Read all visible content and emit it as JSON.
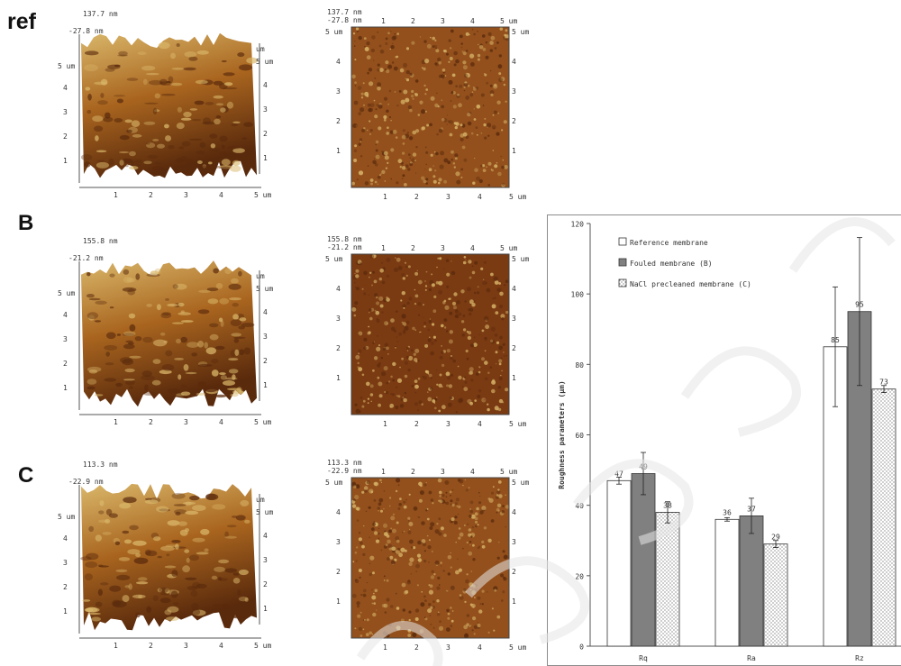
{
  "labels": {
    "ref": "ref",
    "b": "B",
    "c": "C"
  },
  "afm": [
    {
      "row": "ref",
      "three_d": {
        "max": "137.7 nm",
        "min": "-27.8 nm",
        "um5": "5 um",
        "ticks_left": [
          "4",
          "3",
          "2",
          "1"
        ],
        "ticks_right": [
          "4",
          "3",
          "2",
          "1"
        ],
        "ticks_bottom": [
          "1",
          "2",
          "3",
          "4",
          "5 um"
        ],
        "right_top": "um",
        "right_5": "5 um"
      },
      "flat": {
        "max": "137.7 nm",
        "min": "-27.8 nm",
        "top": [
          "1",
          "2",
          "3",
          "4",
          "5 um"
        ],
        "left": [
          "5 um",
          "4",
          "3",
          "2",
          "1"
        ],
        "right": [
          "5 um",
          "4",
          "3",
          "2",
          "1"
        ],
        "bottom": [
          "1",
          "2",
          "3",
          "4",
          "5 um"
        ]
      }
    },
    {
      "row": "B",
      "three_d": {
        "max": "155.8 nm",
        "min": "-21.2 nm",
        "um5": "5 um",
        "ticks_left": [
          "4",
          "3",
          "2",
          "1"
        ],
        "ticks_right": [
          "4",
          "3",
          "2",
          "1"
        ],
        "ticks_bottom": [
          "1",
          "2",
          "3",
          "4",
          "5 um"
        ],
        "right_top": "um",
        "right_5": "5 um"
      },
      "flat": {
        "max": "155.8 nm",
        "min": "-21.2 nm",
        "top": [
          "1",
          "2",
          "3",
          "4",
          "5 um"
        ],
        "left": [
          "5 um",
          "4",
          "3",
          "2",
          "1"
        ],
        "right": [
          "5 um",
          "4",
          "3",
          "2",
          "1"
        ],
        "bottom": [
          "1",
          "2",
          "3",
          "4",
          "5 um"
        ]
      }
    },
    {
      "row": "C",
      "three_d": {
        "max": "113.3 nm",
        "min": "-22.9 nm",
        "um5": "5 um",
        "ticks_left": [
          "4",
          "3",
          "2",
          "1"
        ],
        "ticks_right": [
          "4",
          "3",
          "2",
          "1"
        ],
        "ticks_bottom": [
          "1",
          "2",
          "3",
          "4",
          "5 um"
        ],
        "right_top": "um",
        "right_5": "5 um"
      },
      "flat": {
        "max": "113.3 nm",
        "min": "-22.9 nm",
        "top": [
          "1",
          "2",
          "3",
          "4",
          "5 um"
        ],
        "left": [
          "5 um",
          "4",
          "3",
          "2",
          "1"
        ],
        "right": [
          "5 um",
          "4",
          "3",
          "2",
          "1"
        ],
        "bottom": [
          "1",
          "2",
          "3",
          "4",
          "5 um"
        ]
      }
    }
  ],
  "colors": {
    "afm_light": "#d9b76a",
    "afm_dark": "#5a2a0c",
    "afm_mid": "#a9651f",
    "bar_ref": "#ffffff",
    "bar_fouled": "#808080",
    "bar_nacl": "#ffffff"
  },
  "chart_data": {
    "type": "bar",
    "categories": [
      "Rq",
      "Ra",
      "Rz"
    ],
    "ylabel": "Roughness parameters (µm)",
    "ylim": [
      0,
      120
    ],
    "yticks": [
      "0",
      "20",
      "40",
      "60",
      "80",
      "100",
      "120"
    ],
    "grid": false,
    "legend_position": "top-left",
    "series": [
      {
        "name": "Reference membrane",
        "values": [
          47,
          36,
          85
        ],
        "labels": [
          "47",
          "36",
          "85"
        ],
        "err": [
          1,
          0.5,
          17
        ]
      },
      {
        "name": "Fouled membrane (B)",
        "values": [
          49,
          37,
          95
        ],
        "labels": [
          "49",
          "37",
          "95"
        ],
        "err": [
          6,
          5,
          21
        ]
      },
      {
        "name": "NaCl precleaned membrane (C)",
        "values": [
          38,
          29,
          73
        ],
        "labels": [
          "38",
          "29",
          "73"
        ],
        "err": [
          3,
          1,
          1
        ]
      }
    ]
  }
}
